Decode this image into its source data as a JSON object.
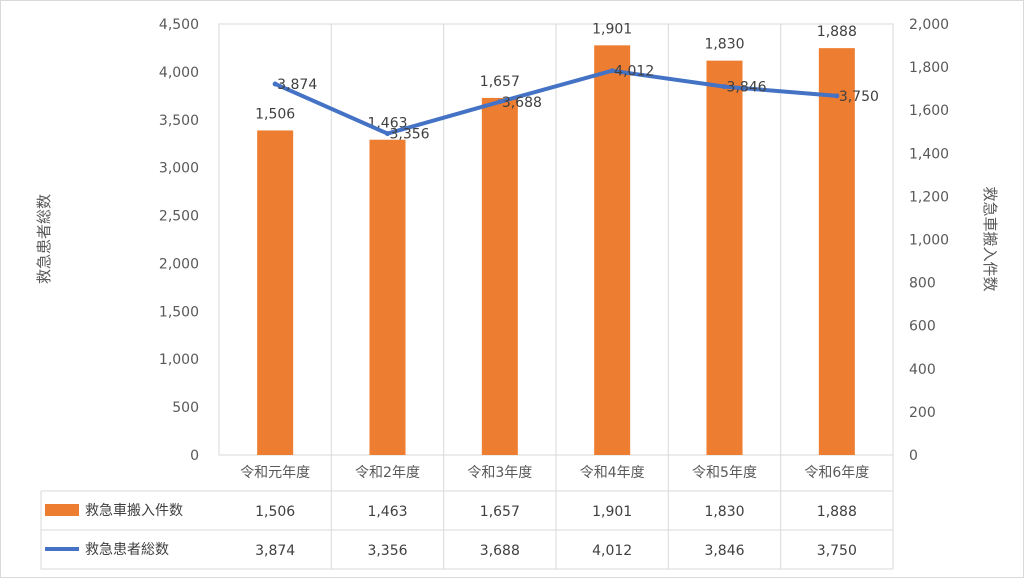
{
  "chart_data": {
    "type": "bar+line",
    "categories": [
      "令和元年度",
      "令和2年度",
      "令和3年度",
      "令和4年度",
      "令和5年度",
      "令和6年度"
    ],
    "series": [
      {
        "name": "救急車搬入件数",
        "type": "bar",
        "axis": "right",
        "values": [
          1506,
          1463,
          1657,
          1901,
          1830,
          1888
        ],
        "labels": [
          "1,506",
          "1,463",
          "1,657",
          "1,901",
          "1,830",
          "1,888"
        ],
        "color": "#ED7D31"
      },
      {
        "name": "救急患者総数",
        "type": "line",
        "axis": "left",
        "values": [
          3874,
          3356,
          3688,
          4012,
          3846,
          3750
        ],
        "labels": [
          "3,874",
          "3,356",
          "3,688",
          "4,012",
          "3,846",
          "3,750"
        ],
        "color": "#4472C4"
      }
    ],
    "ylabel_left": "救急患者総数",
    "ylabel_right": "救急車搬入件数",
    "ylim_left": [
      0,
      4500
    ],
    "ylim_right": [
      0,
      2000
    ],
    "yticks_left": [
      "0",
      "500",
      "1,000",
      "1,500",
      "2,000",
      "2,500",
      "3,000",
      "3,500",
      "4,000",
      "4,500"
    ],
    "yticks_right": [
      "0",
      "200",
      "400",
      "600",
      "800",
      "1,000",
      "1,200",
      "1,400",
      "1,600",
      "1,800",
      "2,000"
    ],
    "grid": false,
    "legend": "data-table"
  }
}
